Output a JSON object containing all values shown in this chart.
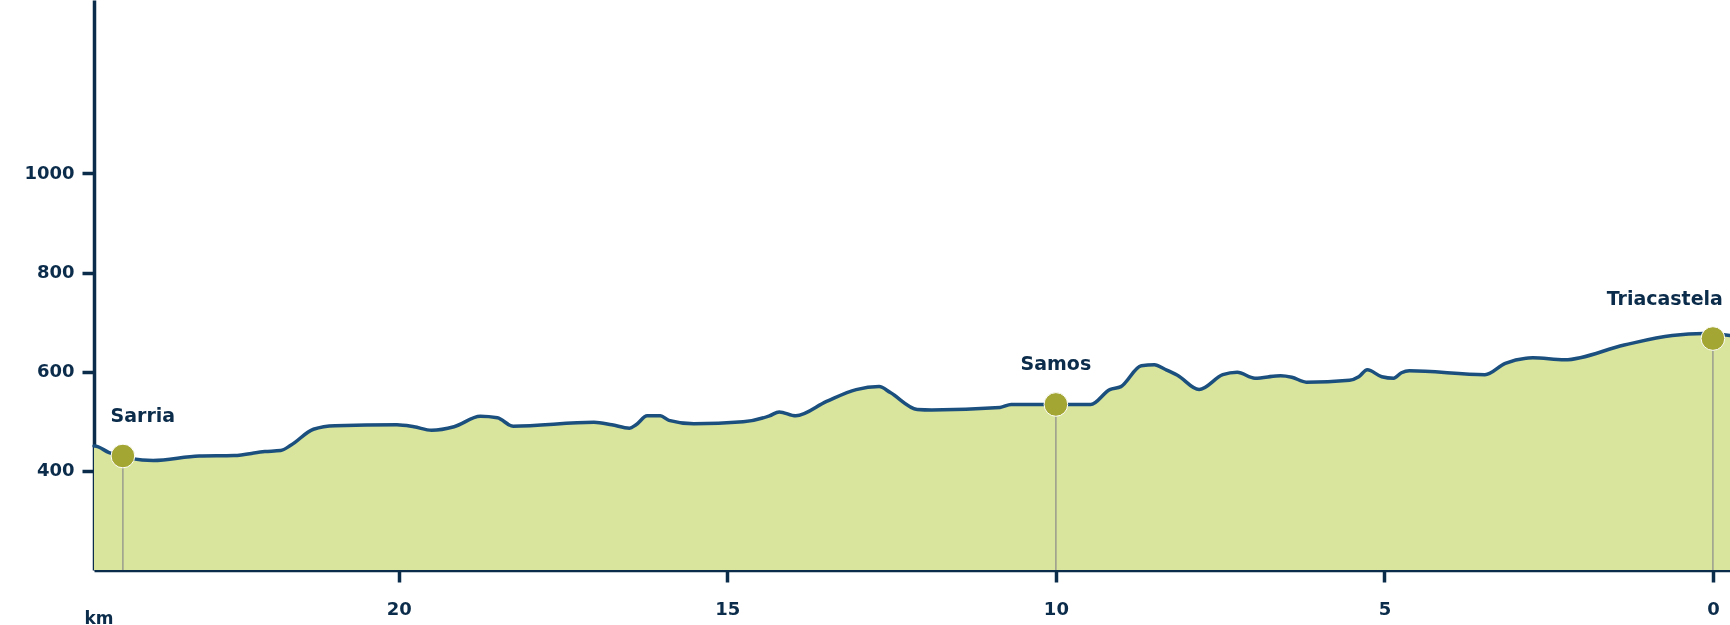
{
  "chart_data": {
    "type": "area",
    "xlabel": "km",
    "xlim": [
      24.64,
      -0.26
    ],
    "ylim": [
      200,
      1350
    ],
    "xticks": [
      20,
      15,
      10,
      5,
      0
    ],
    "yticks": [
      400,
      600,
      800,
      1000
    ],
    "series": [
      {
        "color": "#d9e49c",
        "x": [
          24.64,
          24.63,
          24.41,
          23.74,
          23.04,
          22.51,
          22.04,
          21.8,
          21.64,
          21.3,
          20.97,
          20.03,
          19.77,
          19.5,
          19.16,
          18.76,
          18.5,
          18.26,
          17.03,
          16.76,
          16.49,
          16.39,
          16.22,
          16.02,
          15.89,
          15.51,
          14.76,
          14.36,
          14.21,
          13.96,
          13.49,
          13.04,
          12.69,
          12.52,
          12.11,
          11.89,
          10.85,
          10.68,
          9.47,
          9.18,
          9.01,
          8.7,
          8.5,
          8.34,
          8.15,
          7.82,
          7.46,
          7.24,
          6.97,
          6.58,
          6.41,
          6.19,
          5.53,
          5.39,
          5.26,
          5.04,
          4.86,
          4.74,
          4.62,
          3.47,
          3.16,
          2.74,
          2.26,
          1.35,
          0.62,
          0.14,
          -0.26
        ],
        "values": [
          450,
          450,
          437,
          421,
          430,
          431,
          439,
          441,
          452,
          484,
          491,
          493,
          489,
          482,
          489,
          510,
          507,
          490,
          498,
          493,
          486,
          493,
          511,
          511,
          502,
          495,
          499,
          511,
          519,
          511,
          540,
          564,
          570,
          558,
          524,
          523,
          528,
          534,
          534,
          564,
          570,
          612,
          614,
          605,
          593,
          564,
          594,
          599,
          587,
          592,
          589,
          579,
          583,
          590,
          604,
          590,
          587,
          598,
          602,
          594,
          617,
          628,
          624,
          654,
          673,
          677,
          673
        ]
      },
      {
        "type": "line",
        "color": "#1b4f7e",
        "x": [
          24.64,
          24.63,
          24.41,
          23.74,
          23.04,
          22.51,
          22.04,
          21.8,
          21.64,
          21.3,
          20.97,
          20.03,
          19.77,
          19.5,
          19.16,
          18.76,
          18.5,
          18.26,
          17.03,
          16.76,
          16.49,
          16.39,
          16.22,
          16.02,
          15.89,
          15.51,
          14.76,
          14.36,
          14.21,
          13.96,
          13.49,
          13.04,
          12.69,
          12.52,
          12.11,
          11.89,
          10.85,
          10.68,
          9.47,
          9.18,
          9.01,
          8.7,
          8.5,
          8.34,
          8.15,
          7.82,
          7.46,
          7.24,
          6.97,
          6.58,
          6.41,
          6.19,
          5.53,
          5.39,
          5.26,
          5.04,
          4.86,
          4.74,
          4.62,
          3.47,
          3.16,
          2.74,
          2.26,
          1.35,
          0.62,
          0.14,
          -0.26
        ],
        "values": [
          450,
          450,
          437,
          421,
          430,
          431,
          439,
          441,
          452,
          484,
          491,
          493,
          489,
          482,
          489,
          510,
          507,
          490,
          498,
          493,
          486,
          493,
          511,
          511,
          502,
          495,
          499,
          511,
          519,
          511,
          540,
          564,
          570,
          558,
          524,
          523,
          528,
          534,
          534,
          564,
          570,
          612,
          614,
          605,
          593,
          564,
          594,
          599,
          587,
          592,
          589,
          579,
          583,
          590,
          604,
          590,
          587,
          598,
          602,
          594,
          617,
          628,
          624,
          654,
          673,
          677,
          673
        ]
      },
      {
        "type": "lollipop",
        "color": "#a3a633",
        "x": [
          24.2,
          10,
          0
        ],
        "values": [
          430,
          534,
          667
        ]
      }
    ],
    "annotations": [
      {
        "text": "Sarria",
        "x": 24.2,
        "y": 430
      },
      {
        "text": "Samos",
        "x": 10,
        "y": 534
      },
      {
        "text": "Triacastela",
        "x": 0,
        "y": 667
      }
    ]
  }
}
